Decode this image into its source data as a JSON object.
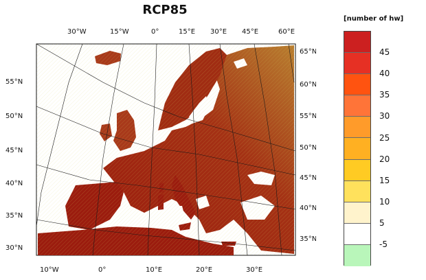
{
  "title": "RCP85",
  "legend": {
    "title": "[number of hw]",
    "colors": [
      "#cc2020",
      "#e63024",
      "#ff5310",
      "#ff7438",
      "#ff9b2a",
      "#ffb022",
      "#ffcb23",
      "#ffe15c",
      "#fff3cc",
      "#ffffff",
      "#b9f6ba"
    ],
    "labels": [
      "45",
      "40",
      "35",
      "30",
      "25",
      "20",
      "15",
      "10",
      "5",
      "-5"
    ]
  },
  "axes": {
    "top": [
      "30°W",
      "15°W",
      "0°",
      "15°E",
      "30°E",
      "45°E",
      "60°E"
    ],
    "bottom": [
      "10°W",
      "0°",
      "10°E",
      "20°E",
      "30°E"
    ],
    "left": [
      "55°N",
      "50°N",
      "45°N",
      "40°N",
      "35°N",
      "30°N"
    ],
    "right": [
      "65°N",
      "60°N",
      "55°N",
      "50°N",
      "45°N",
      "40°N",
      "35°N"
    ]
  }
}
